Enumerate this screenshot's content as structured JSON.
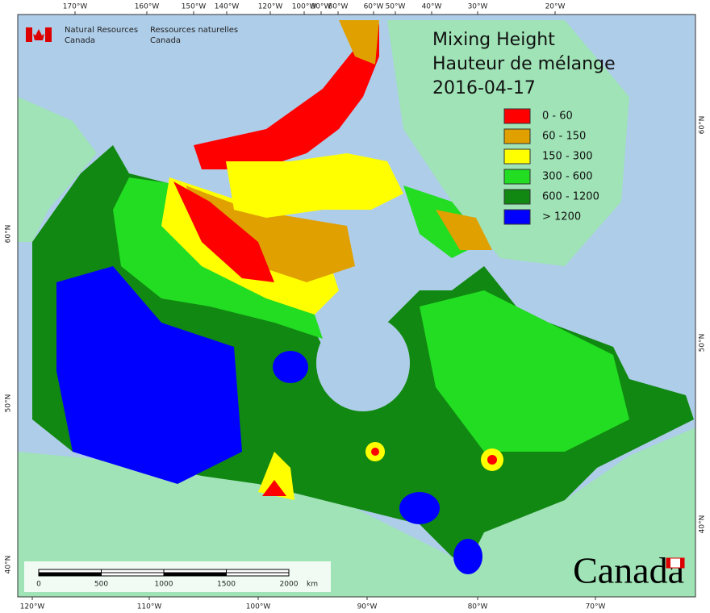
{
  "title": {
    "lines": [
      "Mixing Height",
      "Hauteur de mélange",
      "2016-04-17"
    ]
  },
  "legend": {
    "items": [
      {
        "label": "0 - 60",
        "color": "#ff0000"
      },
      {
        "label": "60 - 150",
        "color": "#e0a000"
      },
      {
        "label": "150 - 300",
        "color": "#ffff00"
      },
      {
        "label": "300 - 600",
        "color": "#22dd22"
      },
      {
        "label": "600 - 1200",
        "color": "#118811"
      },
      {
        "label": "> 1200",
        "color": "#0000ff"
      }
    ]
  },
  "logo": {
    "en": [
      "Natural Resources",
      "Canada"
    ],
    "fr": [
      "Ressources naturelles",
      "Canada"
    ]
  },
  "wordmark": "Canada",
  "graticule": {
    "top": [
      "170°W",
      "160°W",
      "150°W",
      "140°W",
      "120°W",
      "100°W",
      "90°W",
      "80°W",
      "60°W",
      "50°W",
      "40°W",
      "30°W",
      "20°W"
    ],
    "bottom": [
      "120°W",
      "110°W",
      "100°W",
      "90°W",
      "80°W",
      "70°W"
    ],
    "left": [
      "60°N",
      "50°N",
      "40°N"
    ],
    "right": [
      "60°N",
      "50°N",
      "40°N"
    ]
  },
  "scale_bar": {
    "ticks": [
      "0",
      "500",
      "1000",
      "1500",
      "2000"
    ],
    "unit": "km"
  }
}
